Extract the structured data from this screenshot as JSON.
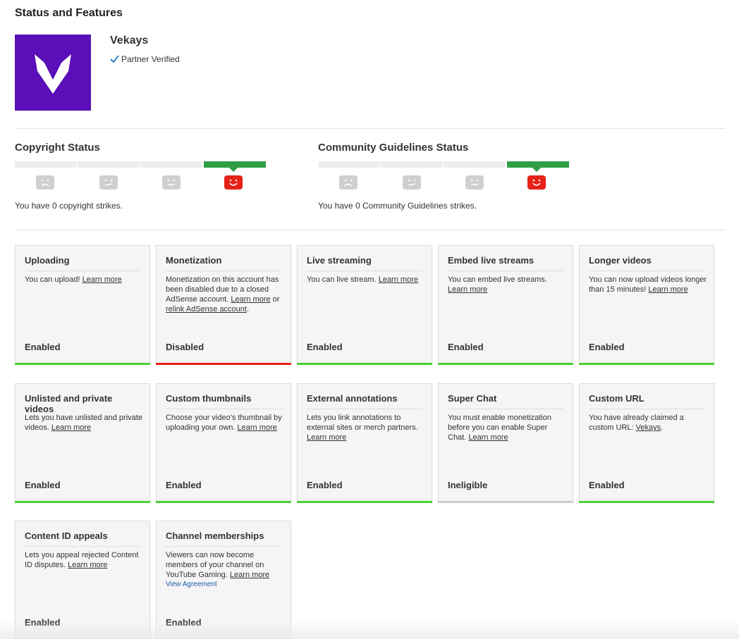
{
  "page": {
    "title": "Status and Features"
  },
  "channel": {
    "name": "Vekays",
    "partner_status": "Partner Verified",
    "brand_color": "#5a0fb8"
  },
  "copyright": {
    "title": "Copyright Status",
    "strikes": 0,
    "status_text": "You have 0 copyright strikes."
  },
  "community": {
    "title": "Community Guidelines Status",
    "strikes": 0,
    "status_text": "You have 0 Community Guidelines strikes."
  },
  "colors": {
    "enabled": "#4cd137",
    "disabled": "#e62117",
    "ineligible": "#cccccc",
    "active_strike_level": "#2e9e47"
  },
  "features": [
    {
      "title": "Uploading",
      "parts": [
        {
          "t": "You can upload! "
        },
        {
          "t": "Learn more",
          "link": true
        }
      ],
      "state": "Enabled",
      "status": "enabled"
    },
    {
      "title": "Monetization",
      "parts": [
        {
          "t": "Monetization on this account has been disabled due to a closed AdSense account. "
        },
        {
          "t": "Learn more",
          "link": true
        },
        {
          "t": " or "
        },
        {
          "t": "relink AdSense account",
          "link": true
        },
        {
          "t": "."
        }
      ],
      "state": "Disabled",
      "status": "disabled"
    },
    {
      "title": "Live streaming",
      "parts": [
        {
          "t": "You can live stream. "
        },
        {
          "t": "Learn more",
          "link": true
        }
      ],
      "state": "Enabled",
      "status": "enabled"
    },
    {
      "title": "Embed live streams",
      "parts": [
        {
          "t": "You can embed live streams. "
        },
        {
          "t": "Learn more",
          "link": true
        }
      ],
      "state": "Enabled",
      "status": "enabled"
    },
    {
      "title": "Longer videos",
      "parts": [
        {
          "t": "You can now upload videos longer than 15 minutes! "
        },
        {
          "t": "Learn more",
          "link": true
        }
      ],
      "state": "Enabled",
      "status": "enabled"
    },
    {
      "title": "Unlisted and private videos",
      "parts": [
        {
          "t": "Lets you have unlisted and private videos. "
        },
        {
          "t": "Learn more",
          "link": true
        }
      ],
      "state": "Enabled",
      "status": "enabled"
    },
    {
      "title": "Custom thumbnails",
      "parts": [
        {
          "t": "Choose your video's thumbnail by uploading your own. "
        },
        {
          "t": "Learn more",
          "link": true
        }
      ],
      "state": "Enabled",
      "status": "enabled"
    },
    {
      "title": "External annotations",
      "parts": [
        {
          "t": "Lets you link annotations to external sites or merch partners. "
        },
        {
          "t": "Learn more",
          "link": true
        }
      ],
      "state": "Enabled",
      "status": "enabled"
    },
    {
      "title": "Super Chat",
      "parts": [
        {
          "t": "You must enable monetization before you can enable Super Chat. "
        },
        {
          "t": "Learn more",
          "link": true
        }
      ],
      "state": "Ineligible",
      "status": "ineligible"
    },
    {
      "title": "Custom URL",
      "parts": [
        {
          "t": "You have already claimed a custom URL: "
        },
        {
          "t": "Vekays",
          "link": true
        },
        {
          "t": "."
        }
      ],
      "state": "Enabled",
      "status": "enabled"
    },
    {
      "title": "Content ID appeals",
      "parts": [
        {
          "t": "Lets you appeal rejected Content ID disputes. "
        },
        {
          "t": "Learn more",
          "link": true
        }
      ],
      "state": "Enabled",
      "status": "enabled"
    },
    {
      "title": "Channel memberships",
      "parts": [
        {
          "t": "Viewers can now become members of your channel on YouTube Gaming. "
        },
        {
          "t": "Learn more",
          "link": true
        },
        {
          "t": "View Agreement",
          "link": true,
          "agreement": true
        }
      ],
      "state": "Enabled",
      "status": "enabled"
    }
  ]
}
